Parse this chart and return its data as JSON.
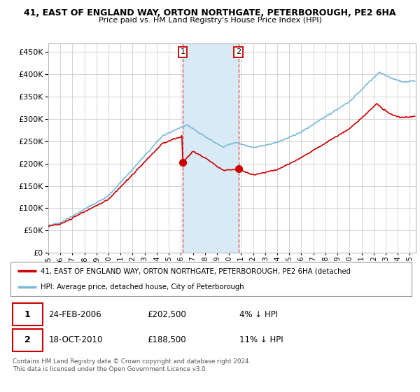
{
  "title": "41, EAST OF ENGLAND WAY, ORTON NORTHGATE, PETERBOROUGH, PE2 6HA",
  "subtitle": "Price paid vs. HM Land Registry's House Price Index (HPI)",
  "ytick_values": [
    0,
    50000,
    100000,
    150000,
    200000,
    250000,
    300000,
    350000,
    400000,
    450000
  ],
  "ylim": [
    0,
    470000
  ],
  "sale1_date": "24-FEB-2006",
  "sale1_price": 202500,
  "sale2_date": "18-OCT-2010",
  "sale2_price": 188500,
  "sale1_hpi_diff": "4% ↓ HPI",
  "sale2_hpi_diff": "11% ↓ HPI",
  "legend_line1": "41, EAST OF ENGLAND WAY, ORTON NORTHGATE, PETERBOROUGH, PE2 6HA (detached",
  "legend_line2": "HPI: Average price, detached house, City of Peterborough",
  "footer": "Contains HM Land Registry data © Crown copyright and database right 2024.\nThis data is licensed under the Open Government Licence v3.0.",
  "sale1_x": 2006.15,
  "sale2_x": 2010.79,
  "hpi_color": "#7ab8d9",
  "sale_color": "#cc0000",
  "bg_color": "#ffffff",
  "grid_color": "#cccccc",
  "highlight_color": "#d8eaf5"
}
